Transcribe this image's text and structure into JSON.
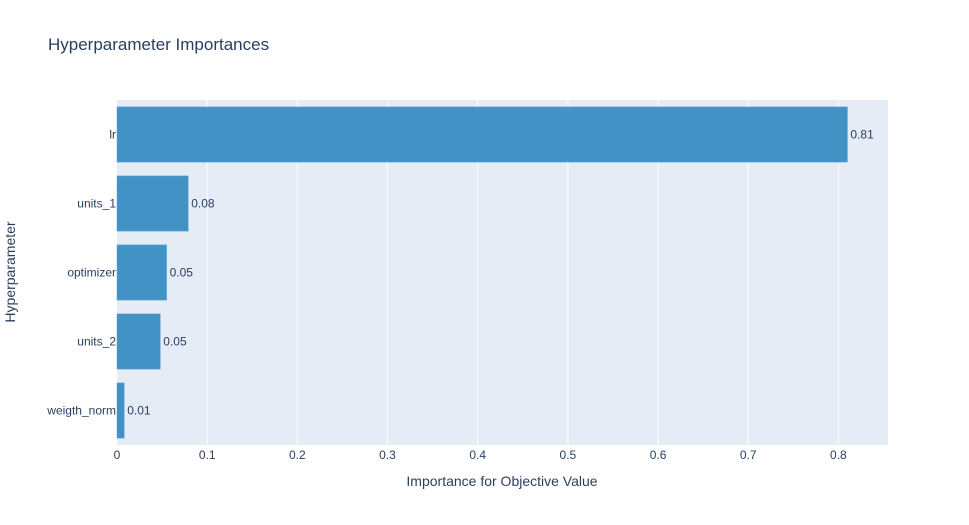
{
  "chart_data": {
    "type": "bar",
    "orientation": "horizontal",
    "title": "Hyperparameter Importances",
    "xlabel": "Importance for Objective Value",
    "ylabel": "Hyperparameter",
    "categories": [
      "lr",
      "units_1",
      "optimizer",
      "units_2",
      "weigth_norm"
    ],
    "values": [
      0.81,
      0.079,
      0.055,
      0.048,
      0.008
    ],
    "value_labels": [
      "0.81",
      "0.08",
      "0.05",
      "0.05",
      "0.01"
    ],
    "xlim": [
      0,
      0.855
    ],
    "xticks": [
      0,
      0.1,
      0.2,
      0.3,
      0.4,
      0.5,
      0.6,
      0.7,
      0.8
    ],
    "xtick_labels": [
      "0",
      "0.1",
      "0.2",
      "0.3",
      "0.4",
      "0.5",
      "0.6",
      "0.7",
      "0.8"
    ],
    "grid": true,
    "colors": {
      "bar": "#4292c6",
      "bar_outline": "#5ca4d2",
      "plot_bg": "#e5ecf6",
      "grid": "#ffffff",
      "text": "#2a3f5f"
    }
  }
}
